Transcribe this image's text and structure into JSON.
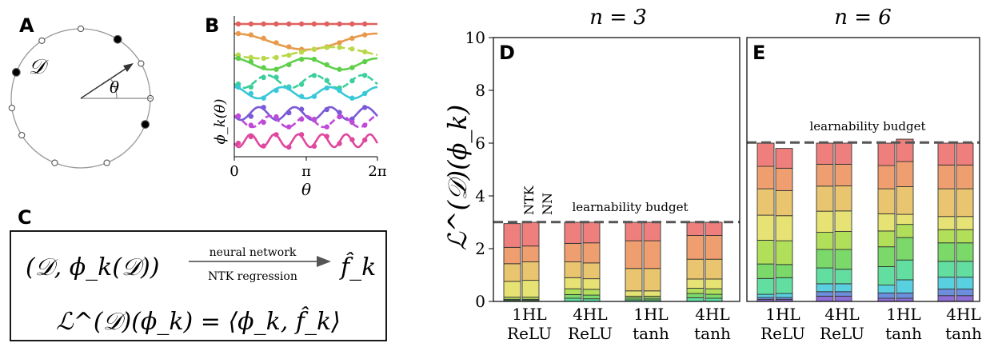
{
  "panels": {
    "A": {
      "label": "A",
      "dataset_symbol": "𝒟",
      "angle_symbol": "θ"
    },
    "B": {
      "label": "B",
      "ylabel": "ϕ_k(θ)",
      "xlabel": "θ",
      "xticks": [
        "0",
        "π",
        "2π"
      ]
    },
    "C": {
      "label": "C",
      "input_expr": "(𝒟, ϕ_k(𝒟))",
      "arrow_top": "neural network",
      "arrow_bottom": "NTK regression",
      "output_expr": "f̂_k",
      "learnability_expr": "ℒ^(𝒟)(ϕ_k) = ⟨ϕ_k, f̂_k⟩"
    },
    "D": {
      "label": "D",
      "title": "n = 3",
      "budget_label": "learnability budget",
      "bar_tags": [
        "NTK",
        "NN"
      ]
    },
    "E": {
      "label": "E",
      "title": "n = 6",
      "budget_label": "learnability budget"
    }
  },
  "colors": {
    "mode_palette": [
      "#d95f8f",
      "#8f6fd6",
      "#6b8fdc",
      "#59d0e0",
      "#62dfa0",
      "#7bd96a",
      "#b2df5a",
      "#e6e374",
      "#eac56f",
      "#ef9f6f",
      "#ee7f7c"
    ]
  },
  "chart_data": [
    {
      "type": "bar",
      "panel": "D",
      "title": "n = 3",
      "ylabel": "ℒ^(𝒟)(ϕ_k)",
      "ylim": [
        0,
        10
      ],
      "yticks": [
        0,
        2,
        4,
        6,
        8,
        10
      ],
      "budget": 3,
      "budget_label": "learnability budget",
      "categories": [
        "1HL ReLU",
        "4HL ReLU",
        "1HL tanh",
        "4HL tanh"
      ],
      "bars": [
        {
          "category": "1HL ReLU",
          "kind": "NTK",
          "segments": [
            0.04,
            0.04,
            0.08,
            0.6,
            0.67,
            0.62,
            0.9
          ]
        },
        {
          "category": "1HL ReLU",
          "kind": "NN",
          "segments": [
            0.04,
            0.04,
            0.08,
            0.64,
            0.7,
            0.6,
            0.9
          ]
        },
        {
          "category": "4HL ReLU",
          "kind": "NTK",
          "segments": [
            0.12,
            0.14,
            0.22,
            0.42,
            0.6,
            0.7,
            0.8
          ]
        },
        {
          "category": "4HL ReLU",
          "kind": "NN",
          "segments": [
            0.1,
            0.14,
            0.22,
            0.4,
            0.6,
            0.76,
            0.78
          ]
        },
        {
          "category": "1HL tanh",
          "kind": "NTK",
          "segments": [
            0.06,
            0.07,
            0.07,
            0.2,
            0.85,
            1.05,
            0.7
          ]
        },
        {
          "category": "1HL tanh",
          "kind": "NN",
          "segments": [
            0.06,
            0.06,
            0.08,
            0.2,
            0.85,
            1.05,
            0.7
          ]
        },
        {
          "category": "4HL tanh",
          "kind": "NTK",
          "segments": [
            0.14,
            0.16,
            0.2,
            0.35,
            0.75,
            0.9,
            0.5
          ]
        },
        {
          "category": "4HL tanh",
          "kind": "NN",
          "segments": [
            0.12,
            0.15,
            0.21,
            0.37,
            0.75,
            0.9,
            0.5
          ]
        }
      ]
    },
    {
      "type": "bar",
      "panel": "E",
      "title": "n = 6",
      "ylim": [
        0,
        10
      ],
      "budget": 6,
      "budget_label": "learnability budget",
      "categories": [
        "1HL ReLU",
        "4HL ReLU",
        "1HL tanh",
        "4HL tanh"
      ],
      "bars": [
        {
          "category": "1HL ReLU",
          "kind": "NTK",
          "segments": [
            0.08,
            0.07,
            0.12,
            0.6,
            0.55,
            0.9,
            0.95,
            1.0,
            0.85,
            0.88
          ]
        },
        {
          "category": "1HL ReLU",
          "kind": "NN",
          "segments": [
            0.08,
            0.07,
            0.15,
            0.6,
            0.5,
            0.9,
            0.95,
            0.95,
            0.85,
            0.75
          ]
        },
        {
          "category": "4HL ReLU",
          "kind": "NTK",
          "segments": [
            0.2,
            0.17,
            0.3,
            0.6,
            0.7,
            0.65,
            0.8,
            0.95,
            0.83,
            0.8
          ]
        },
        {
          "category": "4HL ReLU",
          "kind": "NN",
          "segments": [
            0.2,
            0.17,
            0.3,
            0.55,
            0.75,
            0.68,
            0.78,
            0.95,
            0.82,
            0.8
          ]
        },
        {
          "category": "1HL tanh",
          "kind": "NTK",
          "segments": [
            0.12,
            0.2,
            0.3,
            0.7,
            0.75,
            0.6,
            0.65,
            0.95,
            0.88,
            0.85
          ]
        },
        {
          "category": "1HL tanh",
          "kind": "NN",
          "segments": [
            0.12,
            0.2,
            0.5,
            0.75,
            0.85,
            0.5,
            0.38,
            1.05,
            0.95,
            0.85
          ]
        },
        {
          "category": "4HL tanh",
          "kind": "NTK",
          "segments": [
            0.22,
            0.25,
            0.45,
            0.6,
            0.7,
            0.5,
            0.5,
            1.05,
            0.9,
            0.83
          ]
        },
        {
          "category": "4HL tanh",
          "kind": "NN",
          "segments": [
            0.22,
            0.25,
            0.45,
            0.6,
            0.7,
            0.5,
            0.5,
            1.05,
            0.9,
            0.83
          ]
        }
      ]
    },
    {
      "type": "line",
      "panel": "B",
      "xlabel": "θ",
      "ylabel": "ϕ_k(θ)",
      "xlim": [
        0,
        6.283
      ],
      "xticks": [
        "0",
        "π",
        "2π"
      ],
      "series": [
        {
          "k": 0,
          "frequency": 0,
          "color": "#e0605e"
        },
        {
          "k": 1,
          "frequency": 1,
          "color": "#e89a4c"
        },
        {
          "k": 2,
          "frequency": 1,
          "color": "#b9d84a"
        },
        {
          "k": 3,
          "frequency": 2,
          "color": "#5fcf4a"
        },
        {
          "k": 4,
          "frequency": 3,
          "color": "#3bcf9c"
        },
        {
          "k": 5,
          "frequency": 3,
          "color": "#38c8d8"
        },
        {
          "k": 6,
          "frequency": 4,
          "color": "#7a5ad8"
        },
        {
          "k": 7,
          "frequency": 4,
          "color": "#c04ad8"
        },
        {
          "k": 8,
          "frequency": 6,
          "color": "#e048a0"
        }
      ]
    }
  ]
}
